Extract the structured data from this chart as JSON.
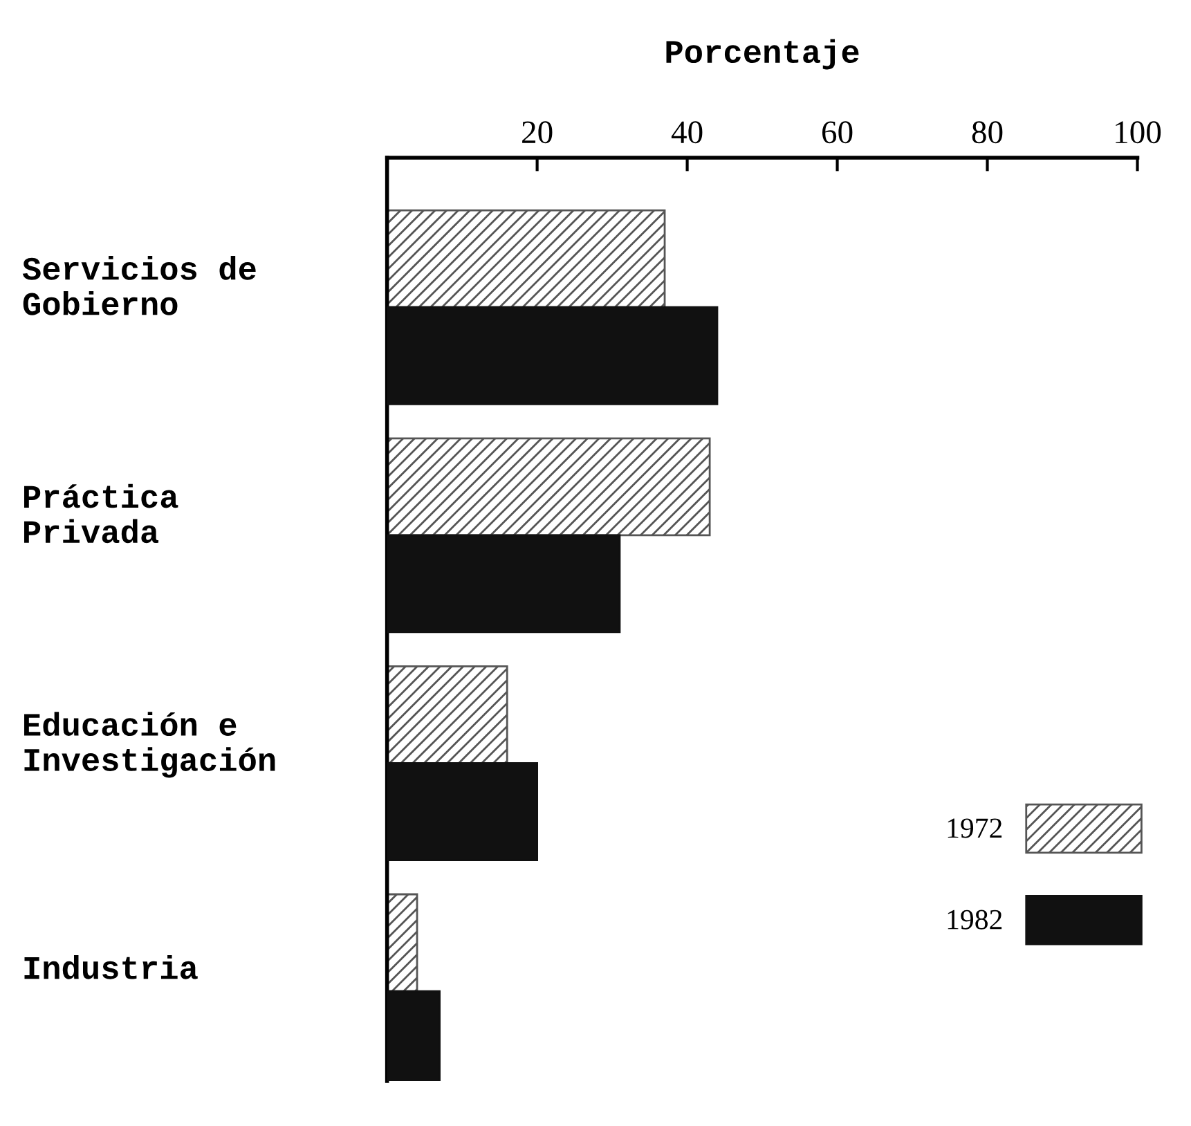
{
  "chart_data": {
    "type": "bar",
    "orientation": "horizontal",
    "xlabel": "Porcentaje",
    "categories": [
      "Servicios de\nGobierno",
      "Práctica\nPrivada",
      "Educación e\nInvestigación",
      "Industria"
    ],
    "series": [
      {
        "name": "1972",
        "color": "#555555",
        "values": [
          37,
          43,
          16,
          4
        ]
      },
      {
        "name": "1982",
        "color": "#111111",
        "values": [
          44,
          31,
          20,
          7
        ]
      }
    ],
    "xlim": [
      0,
      100
    ],
    "xticks": [
      20,
      40,
      60,
      80,
      100
    ],
    "grid": false,
    "legend": "bottom right"
  }
}
